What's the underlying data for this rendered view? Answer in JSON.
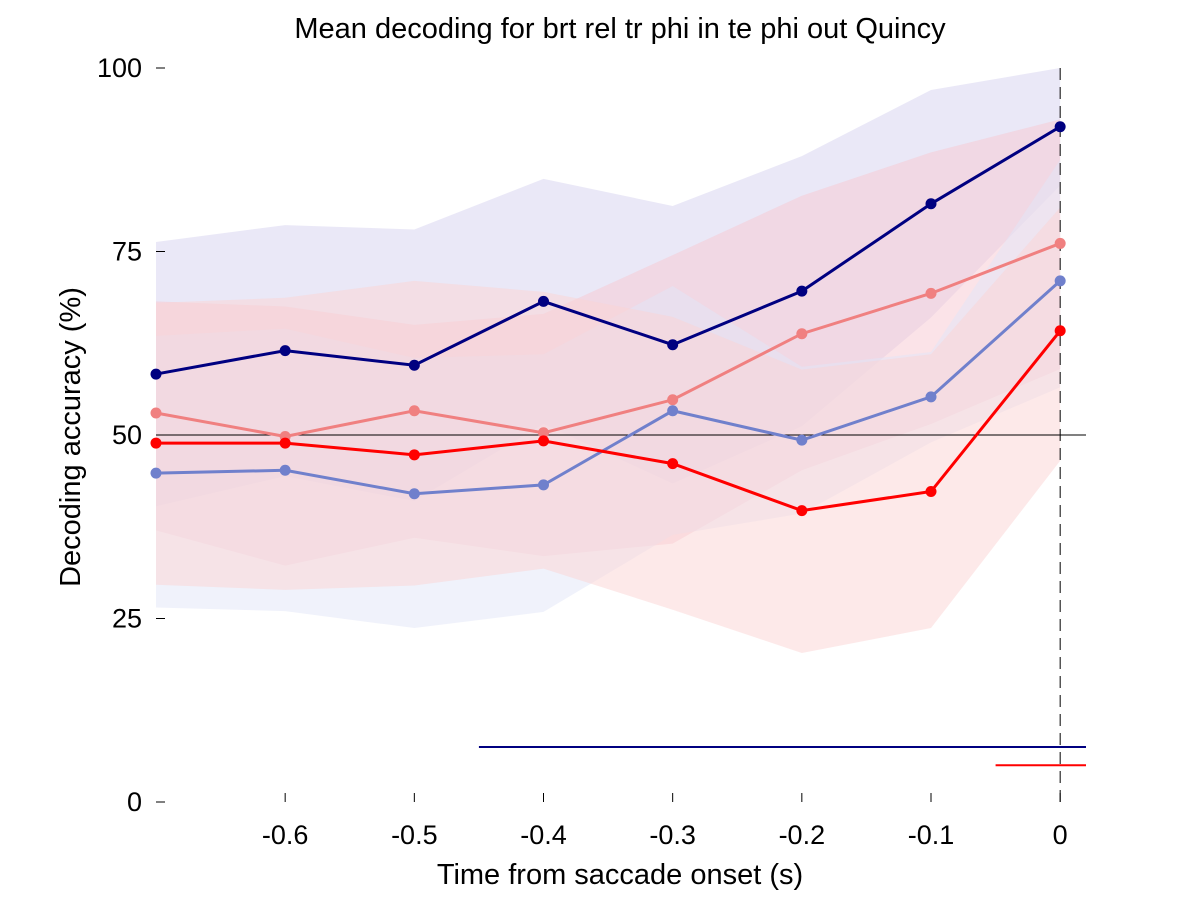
{
  "chart_data": {
    "type": "line",
    "title": "Mean decoding for brt rel tr phi in te phi out  Quincy",
    "xlabel": "Time from saccade onset (s)",
    "ylabel": "Decoding accuracy (%)",
    "xlim": [
      -0.7,
      0.02
    ],
    "ylim": [
      0,
      100
    ],
    "x": [
      -0.7,
      -0.6,
      -0.5,
      -0.4,
      -0.3,
      -0.2,
      -0.1,
      0
    ],
    "xticks": [
      -0.6,
      -0.5,
      -0.4,
      -0.3,
      -0.2,
      -0.1,
      0
    ],
    "xtick_labels": [
      "-0.6",
      "-0.5",
      "-0.4",
      "-0.3",
      "-0.2",
      "-0.1",
      "0"
    ],
    "yticks": [
      0,
      25,
      50,
      75,
      100
    ],
    "ytick_labels": [
      "0",
      "25",
      "50",
      "75",
      "100"
    ],
    "chance_level": 50,
    "event_time": 0,
    "grid": false,
    "series": [
      {
        "color": "#000080",
        "band_color": "#d6d2f0",
        "values": [
          58.3,
          61.5,
          59.5,
          68.2,
          62.3,
          69.6,
          81.5,
          92.0
        ],
        "upper": [
          76.3,
          78.6,
          78.0,
          84.9,
          81.2,
          88.0,
          97.0,
          100
        ],
        "lower": [
          40.3,
          44.4,
          41.0,
          51.5,
          43.4,
          51.2,
          66.0,
          84.0
        ],
        "significance": {
          "x_start": -0.45,
          "x_end": 0.02,
          "y": 7.5
        }
      },
      {
        "color": "#f08080",
        "band_color": "#f8c8d2",
        "values": [
          53.0,
          49.8,
          53.3,
          50.3,
          54.8,
          63.8,
          69.3,
          76.1
        ],
        "upper": [
          68.2,
          67.5,
          65.0,
          66.5,
          74.5,
          82.6,
          88.5,
          93.0
        ],
        "lower": [
          37.0,
          32.2,
          36.0,
          33.5,
          35.2,
          45.2,
          51.5,
          59.0
        ]
      },
      {
        "color": "#7080cc",
        "band_color": "#e2e6f8",
        "values": [
          44.8,
          45.2,
          42.0,
          43.2,
          53.3,
          49.3,
          55.2,
          71.0
        ],
        "upper": [
          63.5,
          64.5,
          60.5,
          61.0,
          70.3,
          59.3,
          61.3,
          87.5
        ],
        "lower": [
          26.5,
          26.0,
          23.7,
          25.9,
          36.4,
          39.3,
          49.0,
          56.5
        ]
      },
      {
        "color": "#ff0000",
        "band_color": "#fbd3d3",
        "values": [
          48.9,
          48.9,
          47.3,
          49.2,
          46.1,
          39.7,
          42.3,
          64.2
        ],
        "upper": [
          68.0,
          68.7,
          71.0,
          69.5,
          66.1,
          58.9,
          61.0,
          81.0
        ],
        "lower": [
          29.6,
          28.9,
          29.5,
          31.8,
          26.2,
          20.3,
          23.7,
          46.5
        ],
        "significance": {
          "x_start": -0.05,
          "x_end": 0.02,
          "y": 5.0
        }
      }
    ]
  }
}
